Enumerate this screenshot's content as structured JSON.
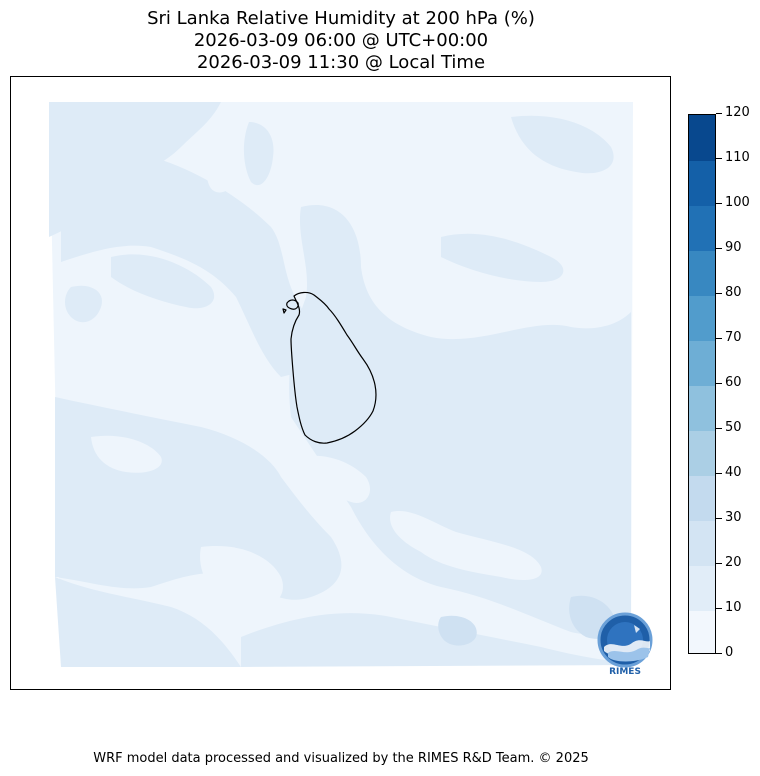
{
  "title": {
    "line1": "Sri Lanka Relative Humidity at 200 hPa (%)",
    "line2": "2026-03-09 06:00 @ UTC+00:00",
    "line3": "2026-03-09 11:30 @ Local Time"
  },
  "map": {
    "field_colors": {
      "level_0_10": "#eef5fc",
      "level_10_20": "#deebf7",
      "level_20_30": "#cfe1f2"
    },
    "coastline_color": "#000000"
  },
  "colorbar": {
    "ticks": [
      "0",
      "10",
      "20",
      "30",
      "40",
      "50",
      "60",
      "70",
      "80",
      "90",
      "100",
      "110",
      "120"
    ],
    "colors": [
      "#f2f7fd",
      "#e1edf8",
      "#d3e4f3",
      "#c3daee",
      "#abcfe5",
      "#8fc1de",
      "#6eaed5",
      "#519ccc",
      "#3888c1",
      "#2171b5",
      "#1460a8",
      "#08488e",
      "#08306b"
    ]
  },
  "logo": {
    "text": "RIMES",
    "color": "#1f5fa8"
  },
  "footer": "WRF model data processed and visualized by the RIMES R&D Team. © 2025"
}
